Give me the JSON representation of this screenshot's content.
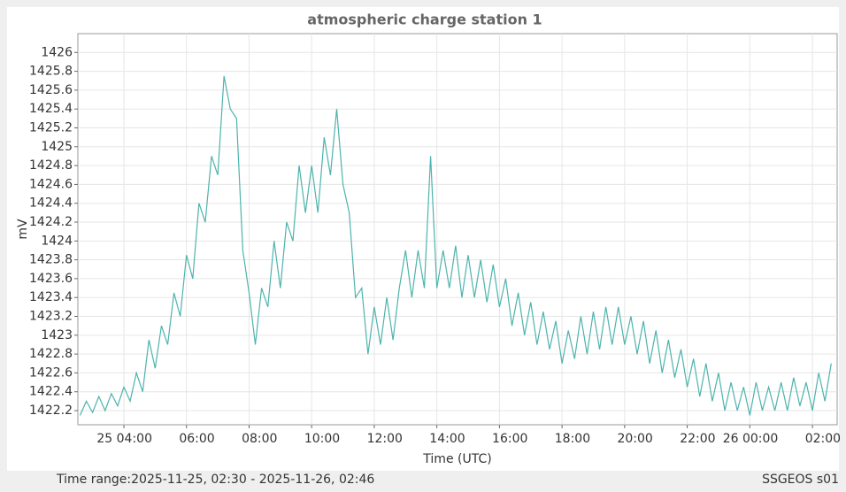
{
  "chart_data": {
    "type": "line",
    "title": "atmospheric charge station 1",
    "x_label": "Time (UTC)",
    "y_label": "mV",
    "footer_left": "Time range:2025-11-25, 02:30 - 2025-11-26, 02:46",
    "footer_right": "SSGEOS s01",
    "color": "#4db3ad",
    "grid": true,
    "xlim": [
      2.53,
      26.79
    ],
    "ylim": [
      1422.05,
      1426.2
    ],
    "xticks": [
      {
        "value": 4,
        "label": "25 04:00"
      },
      {
        "value": 6,
        "label": "06:00"
      },
      {
        "value": 8,
        "label": "08:00"
      },
      {
        "value": 10,
        "label": "10:00"
      },
      {
        "value": 12,
        "label": "12:00"
      },
      {
        "value": 14,
        "label": "14:00"
      },
      {
        "value": 16,
        "label": "16:00"
      },
      {
        "value": 18,
        "label": "18:00"
      },
      {
        "value": 20,
        "label": "20:00"
      },
      {
        "value": 22,
        "label": "22:00"
      },
      {
        "value": 24,
        "label": "26 00:00"
      },
      {
        "value": 26,
        "label": "02:00"
      }
    ],
    "yticks": [
      1422.2,
      1422.4,
      1422.6,
      1422.8,
      1423,
      1423.2,
      1423.4,
      1423.6,
      1423.8,
      1424,
      1424.2,
      1424.4,
      1424.6,
      1424.8,
      1425,
      1425.2,
      1425.4,
      1425.6,
      1425.8,
      1426
    ],
    "x": [
      2.6,
      2.8,
      3.0,
      3.2,
      3.4,
      3.6,
      3.8,
      4.0,
      4.2,
      4.4,
      4.6,
      4.8,
      5.0,
      5.2,
      5.4,
      5.6,
      5.8,
      6.0,
      6.2,
      6.4,
      6.6,
      6.8,
      7.0,
      7.2,
      7.4,
      7.6,
      7.8,
      8.0,
      8.2,
      8.4,
      8.6,
      8.8,
      9.0,
      9.2,
      9.4,
      9.6,
      9.8,
      10.0,
      10.2,
      10.4,
      10.6,
      10.8,
      11.0,
      11.2,
      11.4,
      11.6,
      11.8,
      12.0,
      12.2,
      12.4,
      12.6,
      12.8,
      13.0,
      13.2,
      13.4,
      13.6,
      13.8,
      14.0,
      14.2,
      14.4,
      14.6,
      14.8,
      15.0,
      15.2,
      15.4,
      15.6,
      15.8,
      16.0,
      16.2,
      16.4,
      16.6,
      16.8,
      17.0,
      17.2,
      17.4,
      17.6,
      17.8,
      18.0,
      18.2,
      18.4,
      18.6,
      18.8,
      19.0,
      19.2,
      19.4,
      19.6,
      19.8,
      20.0,
      20.2,
      20.4,
      20.6,
      20.8,
      21.0,
      21.2,
      21.4,
      21.6,
      21.8,
      22.0,
      22.2,
      22.4,
      22.6,
      22.8,
      23.0,
      23.2,
      23.4,
      23.6,
      23.8,
      24.0,
      24.2,
      24.4,
      24.6,
      24.8,
      25.0,
      25.2,
      25.4,
      25.6,
      25.8,
      26.0,
      26.2,
      26.4,
      26.6
    ],
    "values": [
      1422.15,
      1422.3,
      1422.18,
      1422.35,
      1422.2,
      1422.38,
      1422.25,
      1422.45,
      1422.3,
      1422.6,
      1422.4,
      1422.95,
      1422.65,
      1423.1,
      1422.9,
      1423.45,
      1423.2,
      1423.85,
      1423.6,
      1424.4,
      1424.2,
      1424.9,
      1424.7,
      1425.75,
      1425.4,
      1425.3,
      1423.9,
      1423.45,
      1422.9,
      1423.5,
      1423.3,
      1424.0,
      1423.5,
      1424.2,
      1424.0,
      1424.8,
      1424.3,
      1424.8,
      1424.3,
      1425.1,
      1424.7,
      1425.4,
      1424.6,
      1424.3,
      1423.4,
      1423.5,
      1422.8,
      1423.3,
      1422.9,
      1423.4,
      1422.95,
      1423.5,
      1423.9,
      1423.4,
      1423.9,
      1423.5,
      1424.9,
      1423.5,
      1423.9,
      1423.5,
      1423.95,
      1423.4,
      1423.85,
      1423.4,
      1423.8,
      1423.35,
      1423.75,
      1423.3,
      1423.6,
      1423.1,
      1423.45,
      1423.0,
      1423.35,
      1422.9,
      1423.25,
      1422.85,
      1423.15,
      1422.7,
      1423.05,
      1422.75,
      1423.2,
      1422.8,
      1423.25,
      1422.85,
      1423.3,
      1422.9,
      1423.3,
      1422.9,
      1423.2,
      1422.8,
      1423.15,
      1422.7,
      1423.05,
      1422.6,
      1422.95,
      1422.55,
      1422.85,
      1422.45,
      1422.75,
      1422.35,
      1422.7,
      1422.3,
      1422.6,
      1422.2,
      1422.5,
      1422.2,
      1422.45,
      1422.15,
      1422.5,
      1422.2,
      1422.45,
      1422.2,
      1422.5,
      1422.2,
      1422.55,
      1422.25,
      1422.5,
      1422.2,
      1422.6,
      1422.3,
      1422.7
    ]
  }
}
